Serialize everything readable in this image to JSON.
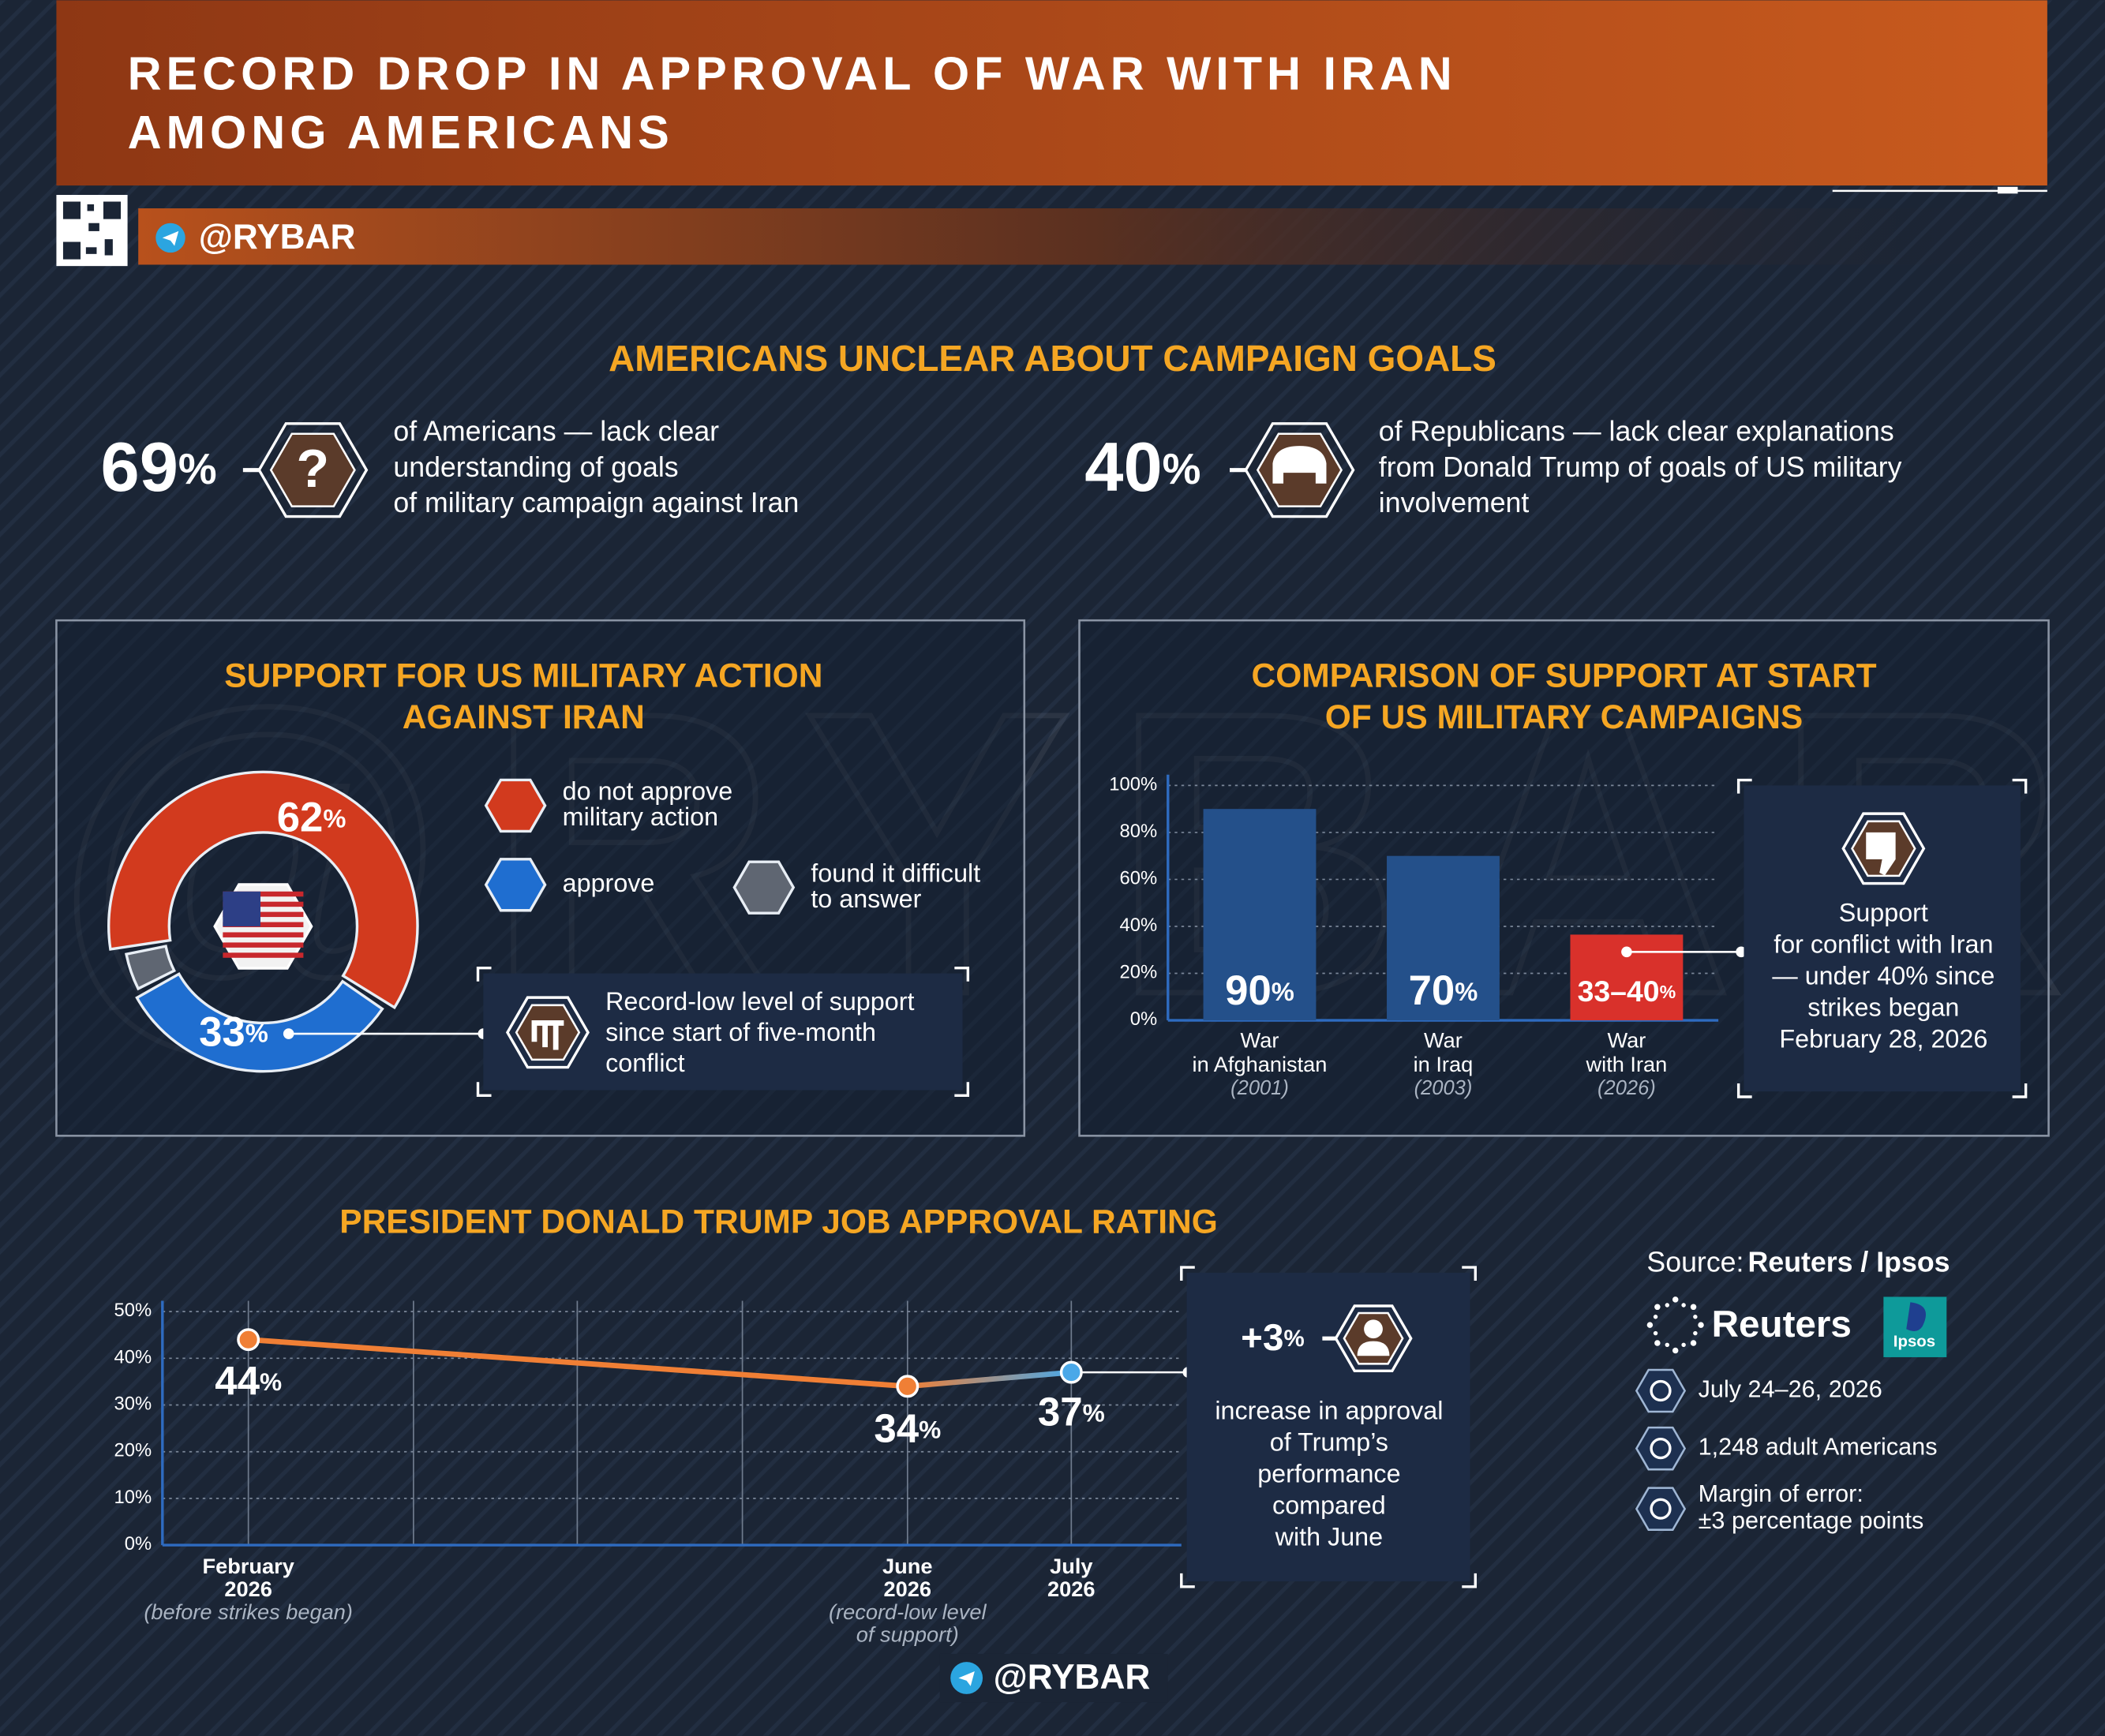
{
  "header": {
    "title": "RECORD DROP IN APPROVAL OF WAR WITH IRAN\nAMONG AMERICANS",
    "handle": "@RYBAR"
  },
  "goals": {
    "title": "AMERICANS UNCLEAR ABOUT CAMPAIGN GOALS",
    "items": [
      {
        "value": "69%",
        "icon": "?",
        "text": "of Americans — lack clear\nunderstanding of goals\nof military campaign against Iran"
      },
      {
        "value": "40%",
        "text": "of Republicans — lack clear explanations\nfrom Donald Trump of goals of US military\ninvolvement"
      }
    ]
  },
  "chart_data": [
    {
      "type": "donut",
      "title": "SUPPORT FOR US MILITARY ACTION\nAGAINST IRAN",
      "categories": [
        "do not approve\nmilitary action",
        "approve",
        "found it difficult\nto answer"
      ],
      "values": [
        62,
        33,
        5
      ],
      "value_labels": [
        "62%",
        "33%",
        null
      ],
      "colors": [
        "#d23a1e",
        "#1f6ed0",
        "#5f6672"
      ]
    },
    {
      "type": "bar",
      "title": "COMPARISON OF SUPPORT AT START\nOF US MILITARY CAMPAIGNS",
      "categories": [
        "War\nin Afghanistan",
        "War\nin Iraq",
        "War\nwith Iran"
      ],
      "category_notes": [
        "(2001)",
        "(2003)",
        "(2026)"
      ],
      "values": [
        90,
        70,
        36.5
      ],
      "value_labels": [
        "90%",
        "70%",
        "33–40%"
      ],
      "colors": [
        "#24508a",
        "#24508a",
        "#d9312b"
      ],
      "ylim": [
        0,
        100
      ],
      "yticks": [
        {
          "value": 0,
          "label": "0%"
        },
        {
          "value": 20,
          "label": "20%"
        },
        {
          "value": 40,
          "label": "40%"
        },
        {
          "value": 60,
          "label": "60%"
        },
        {
          "value": 80,
          "label": "80%"
        },
        {
          "value": 100,
          "label": "100%"
        }
      ],
      "grid": true
    },
    {
      "type": "line",
      "title": "PRESIDENT DONALD TRUMP JOB APPROVAL RATING",
      "categories": [
        "February\n2026",
        "June\n2026",
        "July\n2026"
      ],
      "category_notes": [
        "(before strikes began)",
        "(record-low level\nof support)",
        null
      ],
      "values": [
        44,
        34,
        37
      ],
      "value_labels": [
        "44%",
        "34%",
        "37%"
      ],
      "colors": [
        "#f07f35",
        "#f07f35",
        "#4aa8e8"
      ],
      "ylim": [
        0,
        50
      ],
      "yticks": [
        {
          "value": 0,
          "label": "0%"
        },
        {
          "value": 10,
          "label": "10%"
        },
        {
          "value": 20,
          "label": "20%"
        },
        {
          "value": 30,
          "label": "30%"
        },
        {
          "value": 40,
          "label": "40%"
        },
        {
          "value": 50,
          "label": "50%"
        }
      ],
      "grid": true
    }
  ],
  "callouts": {
    "support": "Record-low level of support\nsince start of five-month\nconflict",
    "comparison": "Support\nfor conflict with Iran\n— under 40% since\nstrikes began\nFebruary 28, 2026",
    "approval": {
      "value": "+3%",
      "text": "increase in approval\nof Trump’s\nperformance\ncompared\nwith June"
    }
  },
  "source": {
    "label": "Source:",
    "name": "Reuters / Ipsos",
    "logos": [
      "Reuters",
      "Ipsos"
    ],
    "details": [
      "July 24–26, 2026",
      "1,248 adult Americans",
      "Margin of error:\n±3 percentage points"
    ]
  },
  "footer": "@RYBAR"
}
